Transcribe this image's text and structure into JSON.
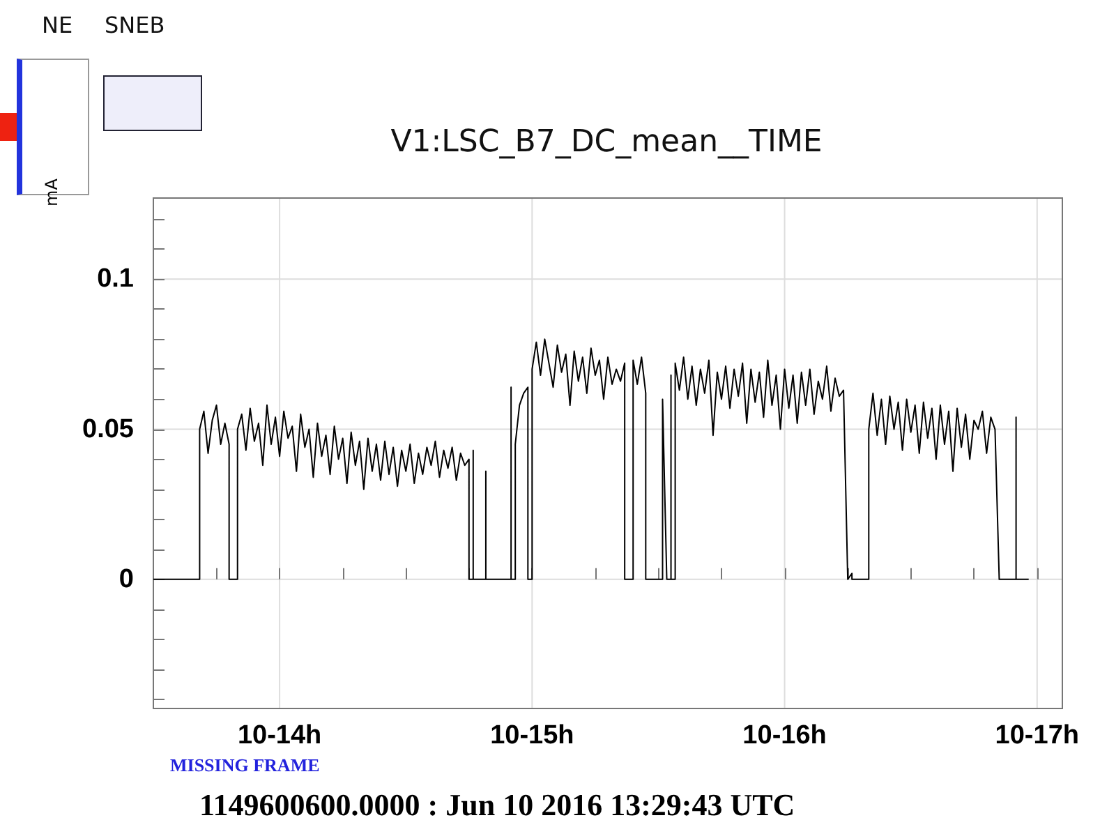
{
  "chart_data": {
    "type": "line",
    "title": "V1:LSC_B7_DC_mean__TIME",
    "ylabel": "mA",
    "annotations": [
      "NE",
      "SNEB",
      "MISSING FRAME",
      "1149600600.0000 : Jun 10 2016 13:29:43 UTC"
    ],
    "xlim": [
      "2016-06-10T13:30",
      "2016-06-10T17:06"
    ],
    "xticks": [
      {
        "value": "2016-06-10T13:45",
        "label": null
      },
      {
        "value": "2016-06-10T14:00",
        "label": "10-14h"
      },
      {
        "value": "2016-06-10T14:15",
        "label": null
      },
      {
        "value": "2016-06-10T14:30",
        "label": null
      },
      {
        "value": "2016-06-10T14:45",
        "label": null
      },
      {
        "value": "2016-06-10T15:00",
        "label": "10-15h"
      },
      {
        "value": "2016-06-10T15:15",
        "label": null
      },
      {
        "value": "2016-06-10T15:30",
        "label": null
      },
      {
        "value": "2016-06-10T15:45",
        "label": null
      },
      {
        "value": "2016-06-10T16:00",
        "label": "10-16h"
      },
      {
        "value": "2016-06-10T16:15",
        "label": null
      },
      {
        "value": "2016-06-10T16:30",
        "label": null
      },
      {
        "value": "2016-06-10T16:45",
        "label": null
      },
      {
        "value": "2016-06-10T17:00",
        "label": "10-17h"
      }
    ],
    "ylim": [
      -0.043,
      0.127
    ],
    "yticks": [
      {
        "value": -0.04,
        "label": null
      },
      {
        "value": -0.03,
        "label": null
      },
      {
        "value": -0.02,
        "label": null
      },
      {
        "value": -0.01,
        "label": null
      },
      0,
      {
        "value": 0.01,
        "label": null
      },
      {
        "value": 0.02,
        "label": null
      },
      {
        "value": 0.03,
        "label": null
      },
      {
        "value": 0.04,
        "label": null
      },
      0.05,
      {
        "value": 0.06,
        "label": null
      },
      {
        "value": 0.07,
        "label": null
      },
      {
        "value": 0.08,
        "label": null
      },
      {
        "value": 0.09,
        "label": null
      },
      0.1,
      {
        "value": 0.11,
        "label": null
      },
      {
        "value": 0.12,
        "label": null
      }
    ],
    "grid": true,
    "marker": "none",
    "line_style": "solid",
    "series": [
      {
        "color": "#000000",
        "x": [
          "2016-06-10T13:30",
          "2016-06-10T13:41",
          "2016-06-10T13:41",
          "2016-06-10T13:42",
          "2016-06-10T13:43",
          "2016-06-10T13:44",
          "2016-06-10T13:45",
          "2016-06-10T13:46",
          "2016-06-10T13:47",
          "2016-06-10T13:48",
          "2016-06-10T13:48",
          "2016-06-10T13:50",
          "2016-06-10T13:50",
          "2016-06-10T13:51",
          "2016-06-10T13:52",
          "2016-06-10T13:53",
          "2016-06-10T13:54",
          "2016-06-10T13:55",
          "2016-06-10T13:56",
          "2016-06-10T13:57",
          "2016-06-10T13:58",
          "2016-06-10T13:59",
          "2016-06-10T14:00",
          "2016-06-10T14:01",
          "2016-06-10T14:02",
          "2016-06-10T14:03",
          "2016-06-10T14:04",
          "2016-06-10T14:05",
          "2016-06-10T14:06",
          "2016-06-10T14:07",
          "2016-06-10T14:08",
          "2016-06-10T14:09",
          "2016-06-10T14:10",
          "2016-06-10T14:11",
          "2016-06-10T14:12",
          "2016-06-10T14:13",
          "2016-06-10T14:14",
          "2016-06-10T14:15",
          "2016-06-10T14:16",
          "2016-06-10T14:17",
          "2016-06-10T14:18",
          "2016-06-10T14:19",
          "2016-06-10T14:20",
          "2016-06-10T14:21",
          "2016-06-10T14:22",
          "2016-06-10T14:23",
          "2016-06-10T14:24",
          "2016-06-10T14:25",
          "2016-06-10T14:26",
          "2016-06-10T14:27",
          "2016-06-10T14:28",
          "2016-06-10T14:29",
          "2016-06-10T14:30",
          "2016-06-10T14:31",
          "2016-06-10T14:32",
          "2016-06-10T14:33",
          "2016-06-10T14:34",
          "2016-06-10T14:35",
          "2016-06-10T14:36",
          "2016-06-10T14:37",
          "2016-06-10T14:38",
          "2016-06-10T14:39",
          "2016-06-10T14:40",
          "2016-06-10T14:41",
          "2016-06-10T14:42",
          "2016-06-10T14:43",
          "2016-06-10T14:44",
          "2016-06-10T14:45",
          "2016-06-10T14:45",
          "2016-06-10T14:46",
          "2016-06-10T14:46",
          "2016-06-10T14:46",
          "2016-06-10T14:49",
          "2016-06-10T14:49",
          "2016-06-10T14:49",
          "2016-06-10T14:55",
          "2016-06-10T14:55",
          "2016-06-10T14:55",
          "2016-06-10T14:56",
          "2016-06-10T14:56",
          "2016-06-10T14:57",
          "2016-06-10T14:58",
          "2016-06-10T14:59",
          "2016-06-10T14:59",
          "2016-06-10T15:00",
          "2016-06-10T15:00",
          "2016-06-10T15:01",
          "2016-06-10T15:02",
          "2016-06-10T15:03",
          "2016-06-10T15:04",
          "2016-06-10T15:05",
          "2016-06-10T15:06",
          "2016-06-10T15:07",
          "2016-06-10T15:08",
          "2016-06-10T15:09",
          "2016-06-10T15:10",
          "2016-06-10T15:11",
          "2016-06-10T15:12",
          "2016-06-10T15:13",
          "2016-06-10T15:14",
          "2016-06-10T15:15",
          "2016-06-10T15:16",
          "2016-06-10T15:17",
          "2016-06-10T15:18",
          "2016-06-10T15:19",
          "2016-06-10T15:20",
          "2016-06-10T15:21",
          "2016-06-10T15:22",
          "2016-06-10T15:22",
          "2016-06-10T15:24",
          "2016-06-10T15:24",
          "2016-06-10T15:25",
          "2016-06-10T15:26",
          "2016-06-10T15:27",
          "2016-06-10T15:27",
          "2016-06-10T15:31",
          "2016-06-10T15:31",
          "2016-06-10T15:32",
          "2016-06-10T15:33",
          "2016-06-10T15:33",
          "2016-06-10T15:33",
          "2016-06-10T15:34",
          "2016-06-10T15:34",
          "2016-06-10T15:35",
          "2016-06-10T15:36",
          "2016-06-10T15:37",
          "2016-06-10T15:38",
          "2016-06-10T15:39",
          "2016-06-10T15:40",
          "2016-06-10T15:41",
          "2016-06-10T15:42",
          "2016-06-10T15:43",
          "2016-06-10T15:44",
          "2016-06-10T15:45",
          "2016-06-10T15:46",
          "2016-06-10T15:47",
          "2016-06-10T15:48",
          "2016-06-10T15:49",
          "2016-06-10T15:50",
          "2016-06-10T15:51",
          "2016-06-10T15:52",
          "2016-06-10T15:53",
          "2016-06-10T15:54",
          "2016-06-10T15:55",
          "2016-06-10T15:56",
          "2016-06-10T15:57",
          "2016-06-10T15:58",
          "2016-06-10T15:59",
          "2016-06-10T16:00",
          "2016-06-10T16:01",
          "2016-06-10T16:02",
          "2016-06-10T16:03",
          "2016-06-10T16:04",
          "2016-06-10T16:05",
          "2016-06-10T16:06",
          "2016-06-10T16:07",
          "2016-06-10T16:08",
          "2016-06-10T16:09",
          "2016-06-10T16:10",
          "2016-06-10T16:11",
          "2016-06-10T16:12",
          "2016-06-10T16:13",
          "2016-06-10T16:14",
          "2016-06-10T16:15",
          "2016-06-10T16:16",
          "2016-06-10T16:16",
          "2016-06-10T16:20",
          "2016-06-10T16:20",
          "2016-06-10T16:21",
          "2016-06-10T16:22",
          "2016-06-10T16:23",
          "2016-06-10T16:24",
          "2016-06-10T16:25",
          "2016-06-10T16:26",
          "2016-06-10T16:27",
          "2016-06-10T16:28",
          "2016-06-10T16:29",
          "2016-06-10T16:30",
          "2016-06-10T16:31",
          "2016-06-10T16:32",
          "2016-06-10T16:33",
          "2016-06-10T16:34",
          "2016-06-10T16:35",
          "2016-06-10T16:36",
          "2016-06-10T16:37",
          "2016-06-10T16:38",
          "2016-06-10T16:39",
          "2016-06-10T16:40",
          "2016-06-10T16:41",
          "2016-06-10T16:42",
          "2016-06-10T16:43",
          "2016-06-10T16:44",
          "2016-06-10T16:45",
          "2016-06-10T16:46",
          "2016-06-10T16:47",
          "2016-06-10T16:48",
          "2016-06-10T16:49",
          "2016-06-10T16:50",
          "2016-06-10T16:51",
          "2016-06-10T16:55",
          "2016-06-10T16:55",
          "2016-06-10T16:55",
          "2016-06-10T16:58"
        ],
        "values": [
          0,
          0,
          0.05,
          0.056,
          0.042,
          0.053,
          0.058,
          0.045,
          0.052,
          0.045,
          0,
          0,
          0.05,
          0.055,
          0.043,
          0.057,
          0.046,
          0.052,
          0.038,
          0.058,
          0.045,
          0.054,
          0.041,
          0.056,
          0.047,
          0.051,
          0.036,
          0.055,
          0.044,
          0.05,
          0.034,
          0.052,
          0.041,
          0.048,
          0.035,
          0.051,
          0.04,
          0.047,
          0.032,
          0.049,
          0.038,
          0.046,
          0.03,
          0.047,
          0.036,
          0.045,
          0.033,
          0.046,
          0.035,
          0.044,
          0.031,
          0.043,
          0.036,
          0.045,
          0.032,
          0.042,
          0.035,
          0.044,
          0.038,
          0.046,
          0.034,
          0.043,
          0.037,
          0.044,
          0.033,
          0.042,
          0.038,
          0.04,
          0,
          0,
          0.043,
          0,
          0,
          0.036,
          0,
          0,
          0.064,
          0,
          0,
          0.045,
          0.058,
          0.062,
          0.064,
          0,
          0,
          0.07,
          0.079,
          0.068,
          0.08,
          0.072,
          0.064,
          0.078,
          0.069,
          0.075,
          0.058,
          0.076,
          0.066,
          0.074,
          0.062,
          0.077,
          0.068,
          0.073,
          0.06,
          0.074,
          0.065,
          0.07,
          0.066,
          0.072,
          0,
          0,
          0.073,
          0.065,
          0.074,
          0.062,
          0,
          0,
          0.06,
          0,
          0,
          0.068,
          0,
          0,
          0.072,
          0.063,
          0.074,
          0.06,
          0.071,
          0.058,
          0.07,
          0.062,
          0.073,
          0.048,
          0.069,
          0.06,
          0.071,
          0.057,
          0.07,
          0.061,
          0.072,
          0.052,
          0.07,
          0.059,
          0.069,
          0.054,
          0.073,
          0.058,
          0.068,
          0.05,
          0.07,
          0.057,
          0.068,
          0.052,
          0.069,
          0.058,
          0.07,
          0.055,
          0.066,
          0.06,
          0.071,
          0.056,
          0.067,
          0.061,
          0.063,
          0,
          0.002,
          0,
          0,
          0.05,
          0.062,
          0.048,
          0.06,
          0.045,
          0.061,
          0.05,
          0.059,
          0.043,
          0.06,
          0.049,
          0.058,
          0.042,
          0.059,
          0.047,
          0.057,
          0.04,
          0.058,
          0.045,
          0.056,
          0.036,
          0.057,
          0.044,
          0.055,
          0.04,
          0.053,
          0.05,
          0.056,
          0.042,
          0.054,
          0.05,
          0,
          0,
          0.054,
          0,
          0
        ]
      }
    ]
  }
}
